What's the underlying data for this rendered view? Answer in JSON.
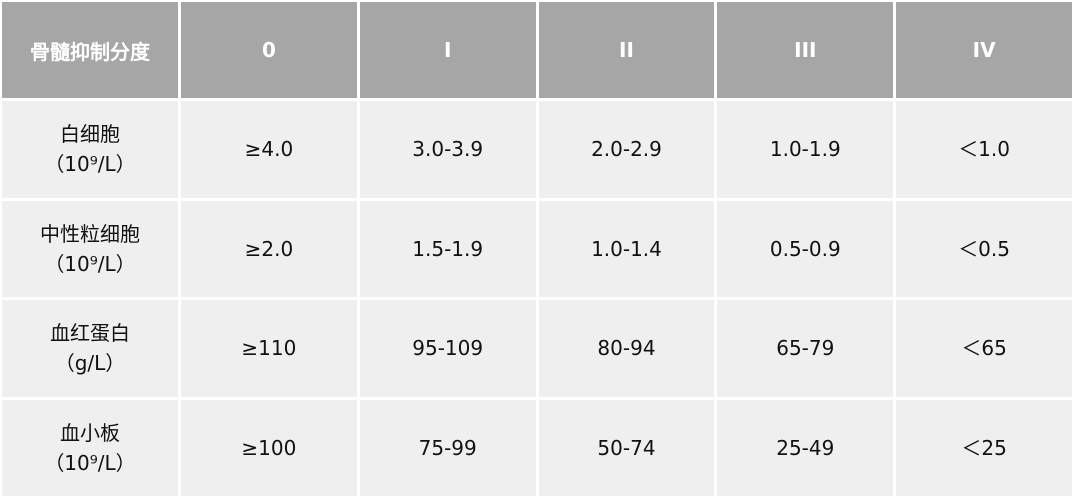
{
  "table": {
    "header": [
      "骨髓抑制分度",
      "0",
      "I",
      "II",
      "III",
      "IV"
    ],
    "rows": [
      {
        "name": "白细胞",
        "unit": "（10⁹/L）",
        "cells": [
          "≥4.0",
          "3.0-3.9",
          "2.0-2.9",
          "1.0-1.9",
          "＜1.0"
        ]
      },
      {
        "name": "中性粒细胞",
        "unit": "（10⁹/L）",
        "cells": [
          "≥2.0",
          "1.5-1.9",
          "1.0-1.4",
          "0.5-0.9",
          "＜0.5"
        ]
      },
      {
        "name": "血红蛋白",
        "unit": "（g/L）",
        "cells": [
          "≥110",
          "95-109",
          "80-94",
          "65-79",
          "＜65"
        ]
      },
      {
        "name": "血小板",
        "unit": "（10⁹/L）",
        "cells": [
          "≥100",
          "75-99",
          "50-74",
          "25-49",
          "＜25"
        ]
      }
    ]
  }
}
